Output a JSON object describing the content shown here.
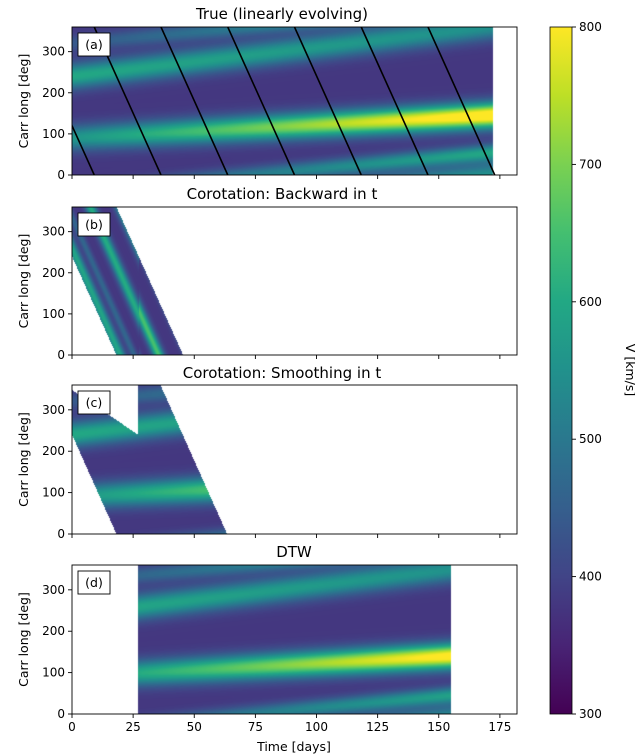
{
  "chart_data": [
    {
      "type": "heatmap",
      "panel_tag": "(a)",
      "title": "True (linearly evolving)",
      "ylabel": "Carr long [deg]",
      "xlabel": "",
      "xlim": [
        0,
        182
      ],
      "ylim": [
        0,
        360
      ],
      "yticks": [
        0,
        100,
        200,
        300
      ],
      "xticks": [
        0,
        25,
        50,
        75,
        100,
        125,
        150,
        175
      ],
      "data_extent": [
        0,
        172
      ],
      "overlay_lines": "black diagonal lines, slope -13.2 deg/day"
    },
    {
      "type": "heatmap",
      "panel_tag": "(b)",
      "title": "Corotation: Backward in t",
      "ylabel": "Carr long [deg]",
      "xlabel": "",
      "xlim": [
        0,
        182
      ],
      "ylim": [
        0,
        360
      ],
      "yticks": [
        0,
        100,
        200,
        300
      ],
      "xticks": [
        0,
        25,
        50,
        75,
        100,
        125,
        150,
        175
      ]
    },
    {
      "type": "heatmap",
      "panel_tag": "(c)",
      "title": "Corotation: Smoothing in t",
      "ylabel": "Carr long [deg]",
      "xlabel": "",
      "xlim": [
        0,
        182
      ],
      "ylim": [
        0,
        360
      ],
      "yticks": [
        0,
        100,
        200,
        300
      ],
      "xticks": [
        0,
        25,
        50,
        75,
        100,
        125,
        150,
        175
      ]
    },
    {
      "type": "heatmap",
      "panel_tag": "(d)",
      "title": "DTW",
      "ylabel": "Carr long [deg]",
      "xlabel": "Time [days]",
      "xlim": [
        0,
        182
      ],
      "ylim": [
        0,
        360
      ],
      "yticks": [
        0,
        100,
        200,
        300
      ],
      "xticks": [
        0,
        25,
        50,
        75,
        100,
        125,
        150,
        175
      ],
      "data_extent": [
        27,
        155
      ]
    }
  ],
  "colorbar": {
    "label": "V [km/s]",
    "range": [
      300,
      800
    ],
    "ticks": [
      300,
      400,
      500,
      600,
      700,
      800
    ],
    "colormap": "viridis"
  }
}
